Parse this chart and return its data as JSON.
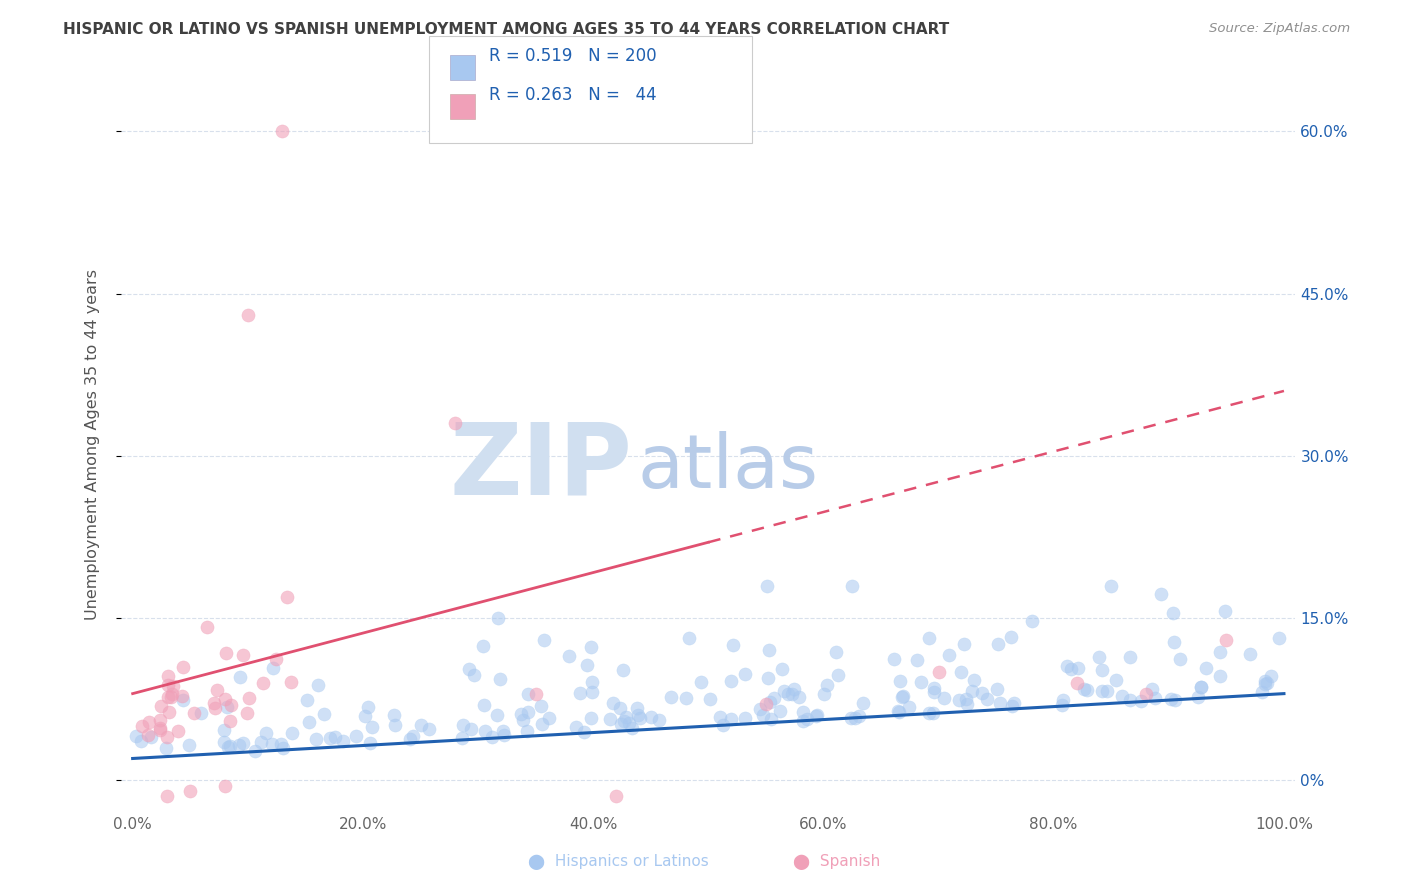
{
  "title": "HISPANIC OR LATINO VS SPANISH UNEMPLOYMENT AMONG AGES 35 TO 44 YEARS CORRELATION CHART",
  "source": "Source: ZipAtlas.com",
  "ylabel": "Unemployment Among Ages 35 to 44 years",
  "x_tick_labels": [
    "0.0%",
    "20.0%",
    "40.0%",
    "60.0%",
    "80.0%",
    "100.0%"
  ],
  "x_tick_vals": [
    0,
    20,
    40,
    60,
    80,
    100
  ],
  "y_tick_labels_right": [
    "0%",
    "15.0%",
    "30.0%",
    "45.0%",
    "60.0%"
  ],
  "y_tick_vals": [
    0,
    15,
    30,
    45,
    60
  ],
  "legend_labels": [
    "Hispanics or Latinos",
    "Spanish"
  ],
  "R_blue": 0.519,
  "N_blue": 200,
  "R_pink": 0.263,
  "N_pink": 44,
  "blue_color": "#a8c8f0",
  "pink_color": "#f0a0b8",
  "blue_line_color": "#2060b0",
  "pink_line_color": "#e05070",
  "title_color": "#404040",
  "source_color": "#909090",
  "legend_text_color": "#2060b0",
  "watermark_ZIP_color": "#d0dff0",
  "watermark_atlas_color": "#b8cce8",
  "background_color": "#ffffff",
  "grid_color": "#d8e0ec",
  "xlim": [
    -1,
    101
  ],
  "ylim": [
    -3,
    65
  ],
  "blue_slope": 0.06,
  "blue_intercept": 2.0,
  "pink_slope": 0.28,
  "pink_intercept": 8.0
}
